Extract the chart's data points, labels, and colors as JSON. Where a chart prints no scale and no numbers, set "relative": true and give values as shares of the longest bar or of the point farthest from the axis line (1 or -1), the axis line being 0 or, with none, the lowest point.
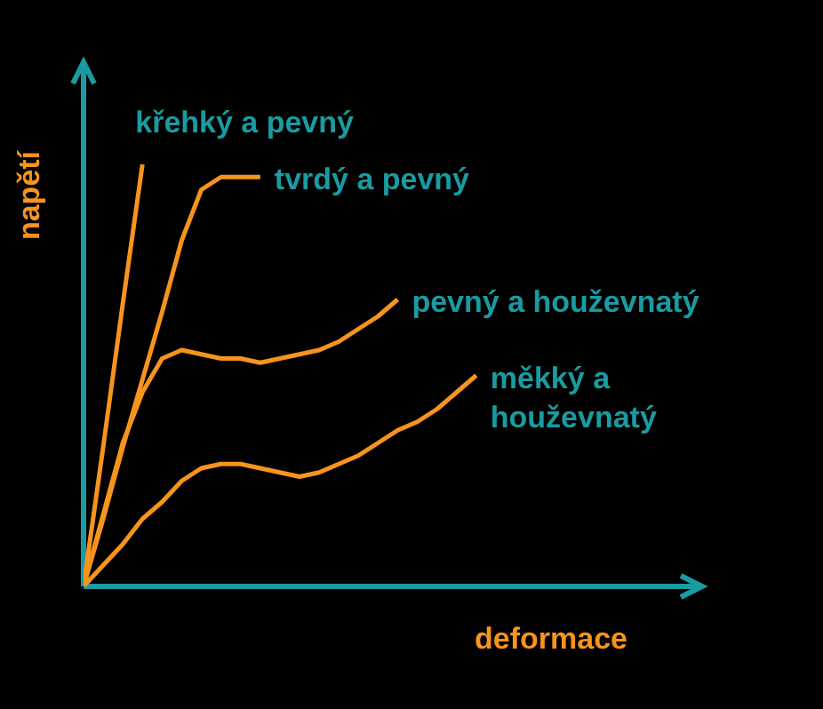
{
  "chart_data": {
    "type": "line",
    "relative": true,
    "xlabel": "deformace",
    "ylabel": "napětí",
    "categories": [
      null,
      null,
      null,
      null,
      null,
      null,
      null,
      null,
      null,
      null,
      null,
      null,
      null,
      null,
      null,
      null,
      null,
      null,
      null,
      null,
      null
    ],
    "series": [
      {
        "name": "křehký a pevný",
        "color": "#f7941d",
        "values": [
          0,
          0.33,
          0.67,
          1,
          null,
          null,
          null,
          null,
          null,
          null,
          null,
          null,
          null,
          null,
          null,
          null,
          null,
          null,
          null,
          null,
          null
        ]
      },
      {
        "name": "tvrdý a pevný",
        "color": "#f7941d",
        "values": [
          0,
          0.16,
          0.33,
          0.49,
          0.65,
          0.82,
          0.94,
          0.97,
          0.97,
          0.97,
          null,
          null,
          null,
          null,
          null,
          null,
          null,
          null,
          null,
          null,
          null
        ]
      },
      {
        "name": "pevný a houževnatý",
        "color": "#f7941d",
        "values": [
          0,
          0.17,
          0.34,
          0.46,
          0.54,
          0.56,
          0.55,
          0.54,
          0.54,
          0.53,
          0.54,
          0.55,
          0.56,
          0.58,
          0.61,
          0.64,
          0.68,
          null,
          null,
          null,
          null
        ]
      },
      {
        "name": "měkký a houževnatý",
        "color": "#f7941d",
        "values": [
          0,
          0.05,
          0.1,
          0.16,
          0.2,
          0.25,
          0.28,
          0.29,
          0.29,
          0.28,
          0.27,
          0.26,
          0.27,
          0.29,
          0.31,
          0.34,
          0.37,
          0.39,
          0.42,
          0.46,
          0.5
        ]
      }
    ]
  }
}
